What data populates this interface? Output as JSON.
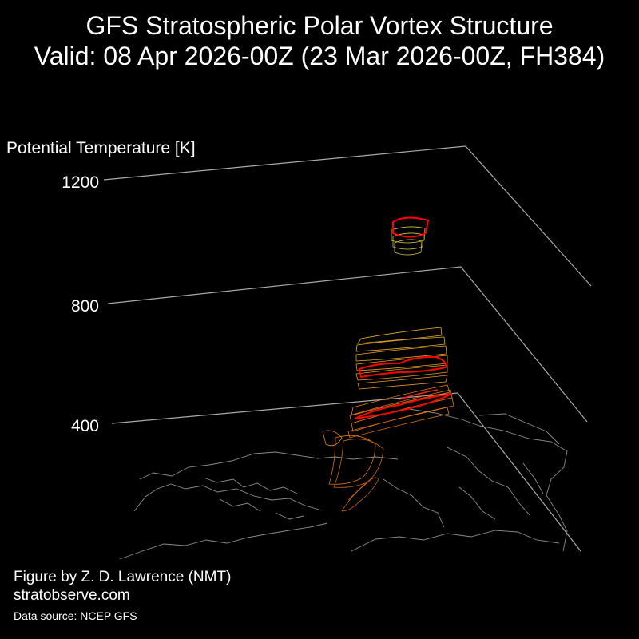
{
  "header": {
    "title": "GFS Stratospheric Polar Vortex Structure",
    "subtitle": "Valid: 08 Apr 2026-00Z  (23 Mar 2026-00Z, FH384)"
  },
  "colors": {
    "background": "#000000",
    "frame": "#aaaaaa",
    "coastline": "#8a8a8a",
    "vortex_edge": "#ff0000",
    "vortex_upper": "#d8d040",
    "vortex_middle": "#e8a020",
    "vortex_lower": "#e07818"
  },
  "chart_data": {
    "type": "3d-isosurface",
    "zlabel": "Potential Temperature [K]",
    "z_ticks": [
      "1200",
      "800",
      "400"
    ],
    "z_values": [
      1200,
      800,
      400
    ]
  },
  "credits": {
    "author": "Figure by Z. D. Lawrence (NMT)",
    "site": "stratobserve.com",
    "source": "Data source: NCEP GFS"
  }
}
